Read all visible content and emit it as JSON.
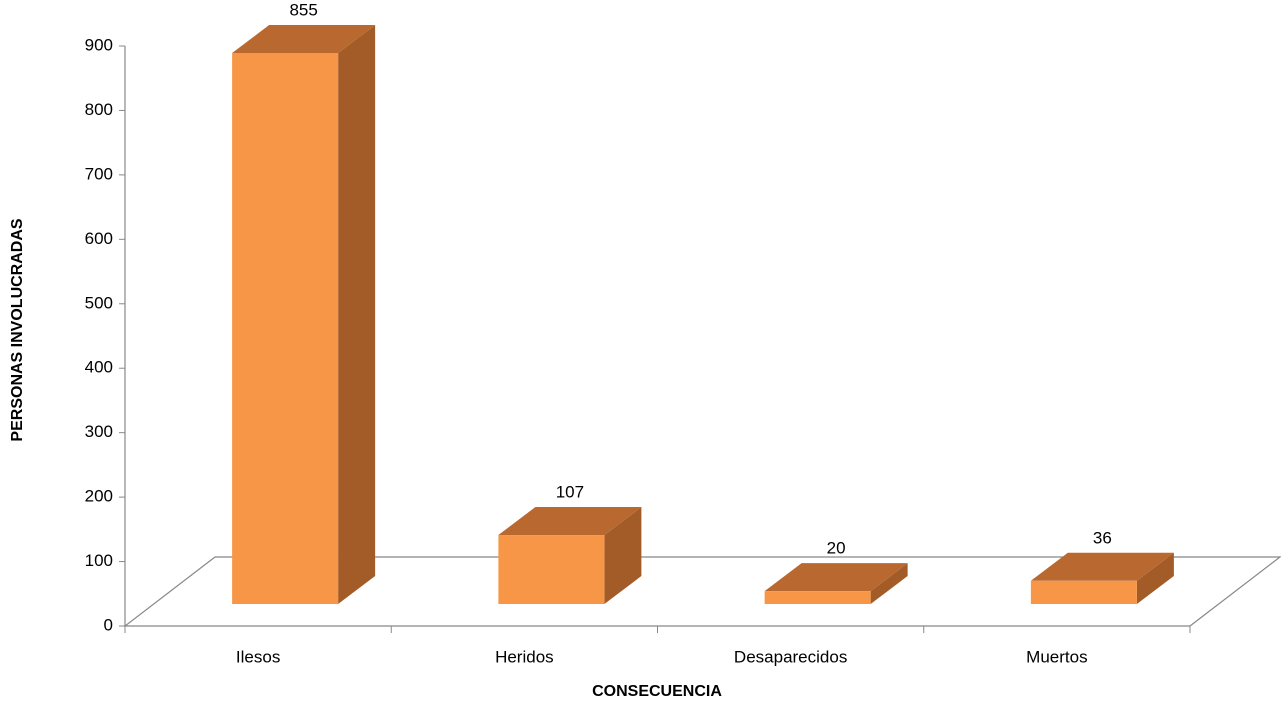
{
  "chart_data": {
    "type": "bar3d",
    "categories": [
      "Ilesos",
      "Heridos",
      "Desaparecidos",
      "Muertos"
    ],
    "values": [
      855,
      107,
      20,
      36
    ],
    "color": "#f79646",
    "ylim": [
      0,
      900
    ],
    "yticks": [
      0,
      100,
      200,
      300,
      400,
      500,
      600,
      700,
      800,
      900
    ],
    "y_label": "PERSONAS INVOLUCRADAS",
    "x_label": "CONSECUENCIA"
  }
}
